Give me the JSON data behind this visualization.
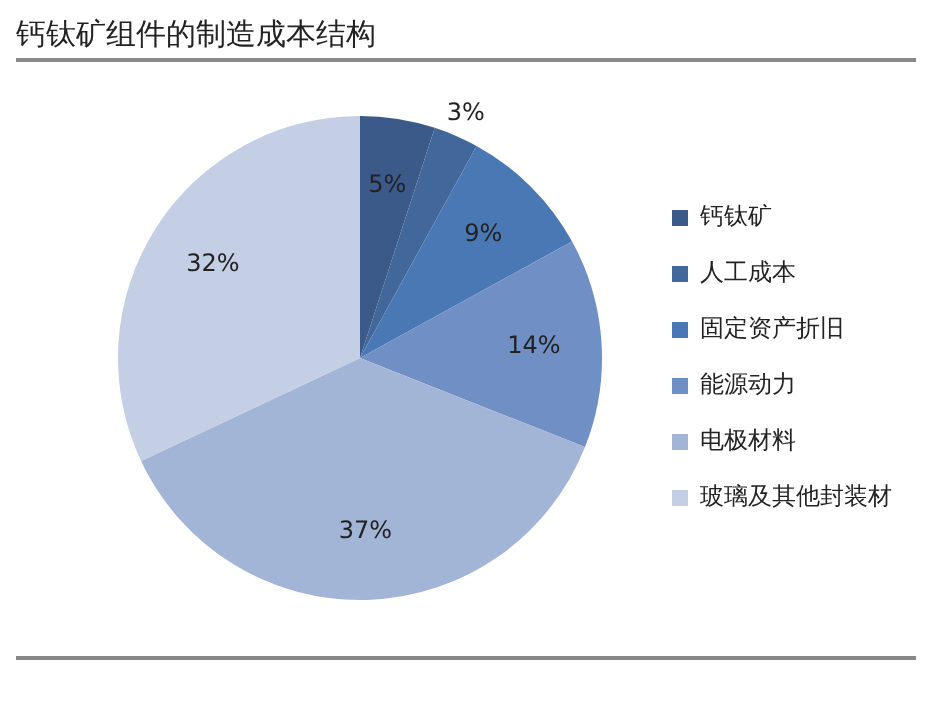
{
  "chart_data": {
    "type": "pie",
    "title": "钙钛矿组件的制造成本结构",
    "categories": [
      "钙钛矿",
      "人工成本",
      "固定资产折旧",
      "能源动力",
      "电极材料",
      "玻璃及其他封装材"
    ],
    "values": [
      5,
      3,
      9,
      14,
      37,
      32
    ],
    "value_labels": [
      "5%",
      "3%",
      "9%",
      "14%",
      "37%",
      "32%"
    ],
    "colors": [
      "#3b5a8a",
      "#42679a",
      "#4a78b4",
      "#6f8fc5",
      "#a3b5d7",
      "#c4cee4"
    ],
    "legend": "right"
  }
}
